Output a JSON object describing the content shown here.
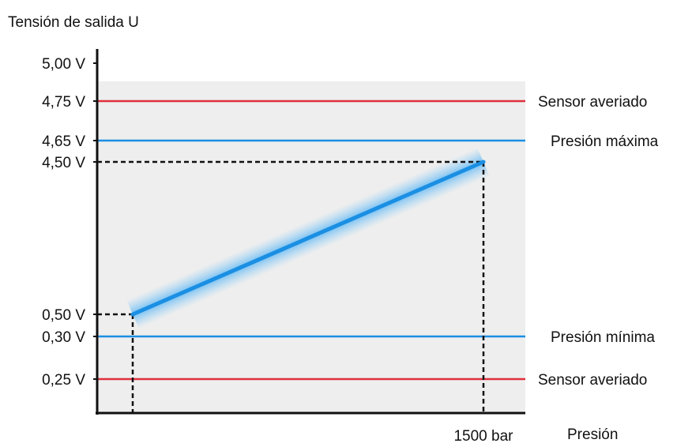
{
  "chart_data": {
    "type": "line",
    "ylabel": "Tensión de salida U",
    "xlabel": "Presión",
    "x_tick_labels": [
      "1500 bar"
    ],
    "y_tick_labels": [
      "5,00 V",
      "4,75 V",
      "4,65 V",
      "4,50 V",
      "0,50 V",
      "0,30 V",
      "0,25 V"
    ],
    "series": [
      {
        "x": [
          0,
          1500
        ],
        "y": [
          0.5,
          4.5
        ],
        "color": "#1a8fe3"
      }
    ],
    "thresholds": [
      {
        "value": 4.75,
        "label": "Sensor averiado",
        "color": "#e0303c"
      },
      {
        "value": 4.65,
        "label": "Presión máxima",
        "color": "#1a8fe3"
      },
      {
        "value": 0.3,
        "label": "Presión mínima",
        "color": "#1a8fe3"
      },
      {
        "value": 0.25,
        "label": "Sensor averiado",
        "color": "#e0303c"
      }
    ],
    "guides": [
      {
        "x": 0,
        "y": 0.5
      },
      {
        "x": 1500,
        "y": 4.5
      }
    ],
    "plot_background": "#eeeeee",
    "grid": false
  }
}
